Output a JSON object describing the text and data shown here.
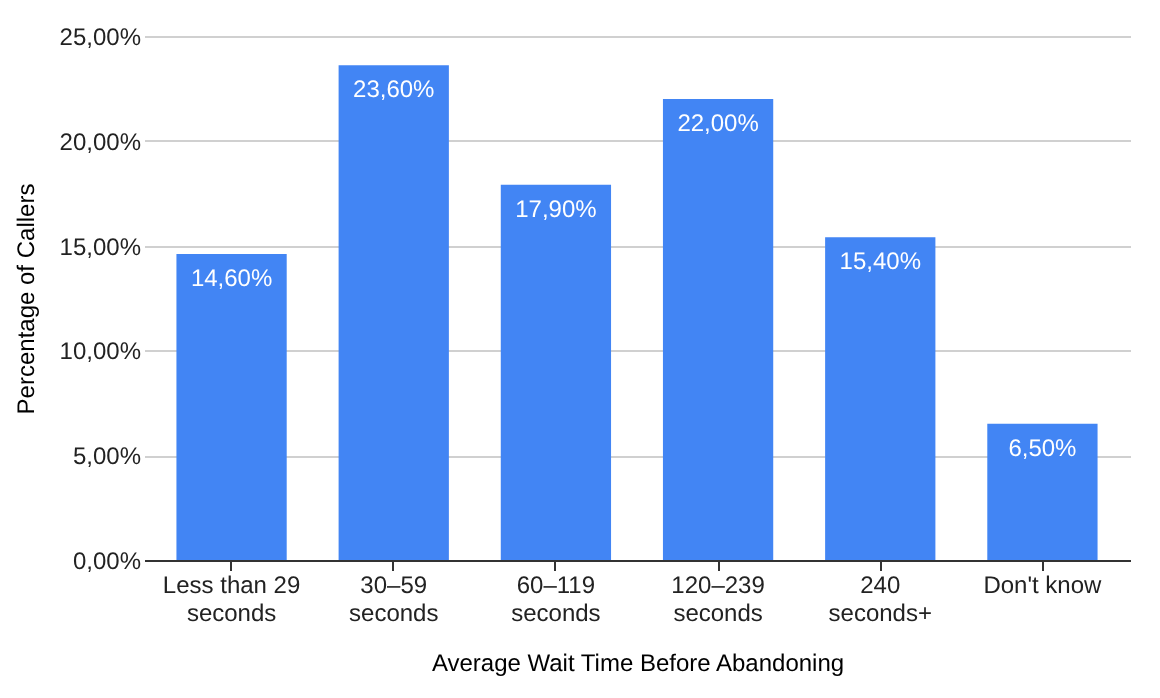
{
  "chart_data": {
    "type": "bar",
    "xlabel": "Average Wait Time Before Abandoning",
    "ylabel": "Percentage of Callers",
    "categories": [
      "Less than 29 seconds",
      "30–59 seconds",
      "60–119 seconds",
      "120–239 seconds",
      "240 seconds+",
      "Don't know"
    ],
    "values": [
      14.6,
      23.6,
      17.9,
      22.0,
      15.4,
      6.5
    ],
    "value_labels": [
      "14,60%",
      "23,60%",
      "17,90%",
      "22,00%",
      "15,40%",
      "6,50%"
    ],
    "color": "#4285f4",
    "ylim": [
      0,
      25
    ],
    "yticks": [
      {
        "value": 0,
        "label": "0,00%"
      },
      {
        "value": 5,
        "label": "5,00%"
      },
      {
        "value": 10,
        "label": "10,00%"
      },
      {
        "value": 15,
        "label": "15,00%"
      },
      {
        "value": 20,
        "label": "20,00%"
      },
      {
        "value": 25,
        "label": "25,00%"
      }
    ],
    "grid": "y"
  }
}
